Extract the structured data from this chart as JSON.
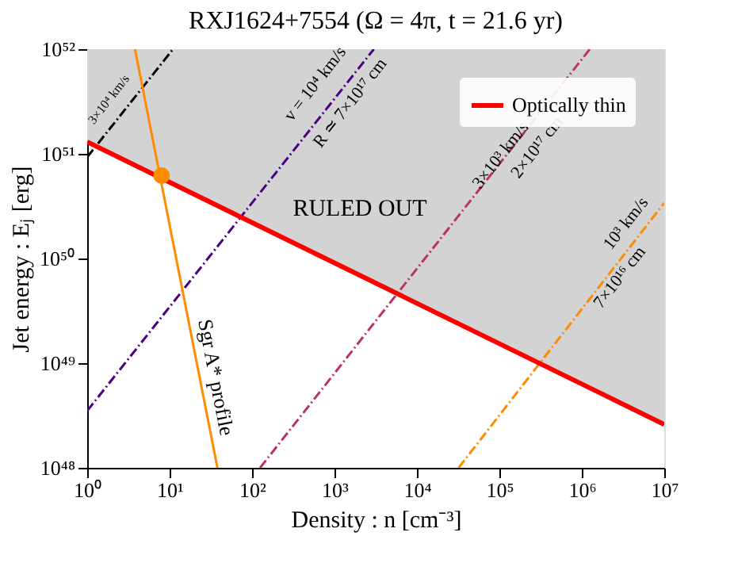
{
  "chart_data": {
    "type": "line",
    "title": "RXJ1624+7554 (Ω = 4π, t = 21.6 yr)",
    "xlabel": "Density : n [cm⁻³]",
    "ylabel": "Jet energy : Eⱼ [erg]",
    "log": "xy",
    "grid": false,
    "legend": "top right",
    "marker": "none",
    "xlim": [
      1,
      10000000
    ],
    "ylim": [
      1e+48,
      1e+52
    ],
    "xticks": [
      {
        "value": 1,
        "label": "10⁰"
      },
      {
        "value": 10,
        "label": "10¹"
      },
      {
        "value": 100,
        "label": "10²"
      },
      {
        "value": 1000,
        "label": "10³"
      },
      {
        "value": 10000,
        "label": "10⁴"
      },
      {
        "value": 100000,
        "label": "10⁵"
      },
      {
        "value": 1000000,
        "label": "10⁶"
      },
      {
        "value": 10000000,
        "label": "10⁷"
      }
    ],
    "yticks": [
      {
        "value": 1e+48,
        "label": "10⁴⁸"
      },
      {
        "value": 1e+49,
        "label": "10⁴⁹"
      },
      {
        "value": 1e+50,
        "label": "10⁵⁰"
      },
      {
        "value": 1e+51,
        "label": "10⁵¹"
      },
      {
        "value": 1e+52,
        "label": "10⁵²"
      }
    ],
    "series": [
      {
        "color": "#000000",
        "line_style": "dashed",
        "x": [
          1,
          11
        ],
        "values": [
          9.3e+50,
          1e+52
        ]
      },
      {
        "color": "#4b0082",
        "line_style": "dashed",
        "x": [
          1,
          3000
        ],
        "values": [
          3.5e+48,
          1e+52
        ]
      },
      {
        "color": "#b8336a",
        "line_style": "dashed",
        "x": [
          125,
          1250000
        ],
        "values": [
          1e+48,
          1e+52
        ]
      },
      {
        "color": "#ff8c00",
        "line_style": "dashed",
        "x": [
          32000,
          10000000
        ],
        "values": [
          1e+48,
          3.4e+50
        ]
      },
      {
        "color": "#ff8c00",
        "line_style": "solid",
        "x": [
          3.8,
          38
        ],
        "values": [
          1e+52,
          1e+48
        ]
      },
      {
        "name": "Optically thin",
        "color": "#ff0000",
        "line_style": "solid",
        "x": [
          1,
          10000000
        ],
        "values": [
          1.3e+51,
          2.6e+48
        ],
        "lower": [
          1.3e+51,
          2.6e+48
        ],
        "upper": [
          1e+52,
          1e+52
        ]
      },
      {
        "type": "scatter",
        "marker": "circle",
        "color": "#ff8c00",
        "x": [
          8
        ],
        "values": [
          6.2e+50
        ]
      }
    ],
    "annotations": [
      "3×10⁴ km/s",
      "v = 10⁴ km/s",
      "R ≃ 7×10¹⁷ cm",
      "3×10³ km/s",
      "2×10¹⁷ cm",
      "10³ km/s",
      "7×10¹⁶ cm",
      "RULED OUT",
      "Sgr A* profile"
    ]
  }
}
